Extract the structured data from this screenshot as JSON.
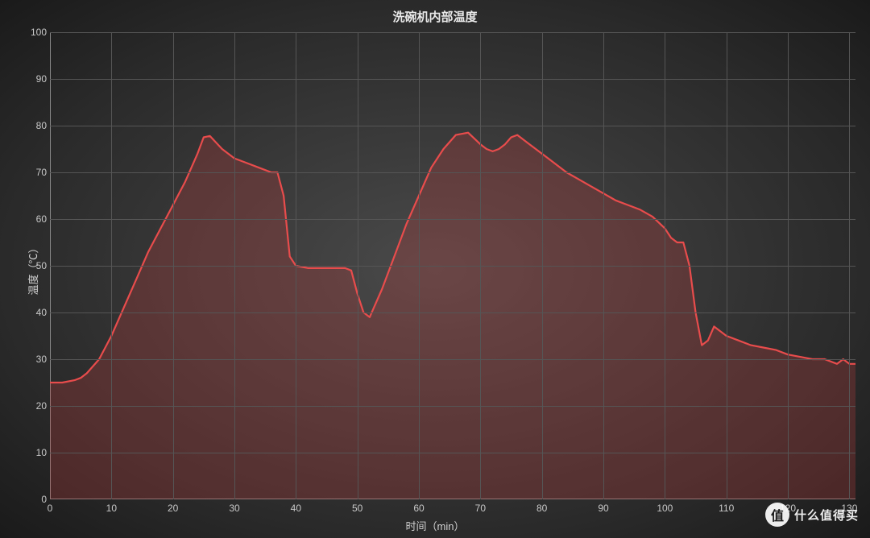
{
  "chart": {
    "type": "area",
    "title": "洗碗机内部温度",
    "xlabel": "时间（min）",
    "ylabel": "温度（℃）",
    "title_fontsize": 15,
    "label_fontsize": 13,
    "tick_fontsize": 12,
    "background": "radial-gradient #4a4a4a→#1a1a1a",
    "grid_color": "#555555",
    "axis_color": "#888888",
    "text_color": "#d0d0d0",
    "line_color": "#e84c4c",
    "fill_color": "rgba(190,60,60,0.28)",
    "line_width": 2.2,
    "xlim": [
      0,
      131
    ],
    "ylim": [
      0,
      100
    ],
    "xtick_step": 10,
    "ytick_step": 10,
    "xticks": [
      0,
      10,
      20,
      30,
      40,
      50,
      60,
      70,
      80,
      90,
      100,
      110,
      120,
      130
    ],
    "yticks": [
      0,
      10,
      20,
      30,
      40,
      50,
      60,
      70,
      80,
      90,
      100
    ],
    "series": {
      "x": [
        0,
        2,
        4,
        5,
        6,
        8,
        10,
        12,
        14,
        16,
        18,
        20,
        22,
        24,
        25,
        26,
        28,
        30,
        32,
        34,
        36,
        37,
        38,
        39,
        40,
        42,
        44,
        46,
        48,
        49,
        50,
        51,
        52,
        54,
        56,
        58,
        60,
        62,
        64,
        66,
        68,
        70,
        71,
        72,
        73,
        74,
        75,
        76,
        78,
        80,
        82,
        84,
        86,
        88,
        90,
        92,
        94,
        96,
        98,
        100,
        101,
        102,
        103,
        104,
        105,
        106,
        107,
        108,
        110,
        112,
        114,
        116,
        118,
        120,
        122,
        124,
        126,
        128,
        129,
        130,
        131
      ],
      "y": [
        25,
        25,
        25.5,
        26,
        27,
        30,
        35,
        41,
        47,
        53,
        58,
        63,
        68,
        74,
        77.5,
        77.8,
        75,
        73,
        72,
        71,
        70,
        70,
        65,
        52,
        50,
        49.5,
        49.5,
        49.5,
        49.5,
        49,
        44,
        40,
        39,
        45,
        52,
        59,
        65,
        71,
        75,
        78,
        78.5,
        76,
        75,
        74.5,
        75,
        76,
        77.5,
        78,
        76,
        74,
        72,
        70,
        68.5,
        67,
        65.5,
        64,
        63,
        62,
        60.5,
        58,
        56,
        55,
        55,
        50,
        40,
        33,
        34,
        37,
        35,
        34,
        33,
        32.5,
        32,
        31,
        30.5,
        30,
        30,
        29,
        30,
        29,
        29
      ]
    }
  },
  "watermark": {
    "badge": "值",
    "text": "什么值得买"
  }
}
